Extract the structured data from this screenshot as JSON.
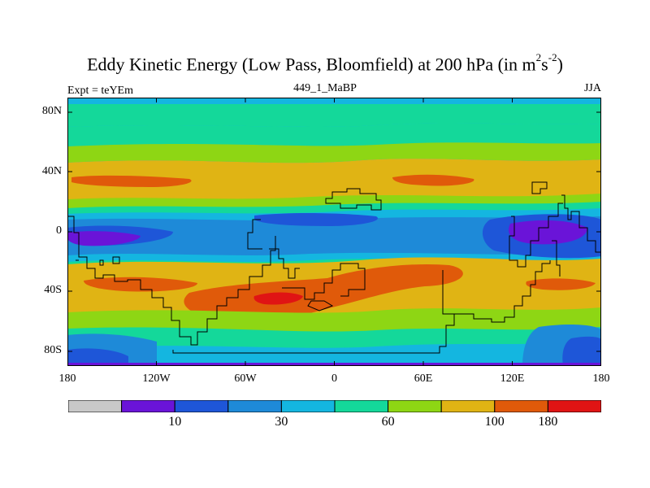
{
  "title": {
    "main": "Eddy Kinetic Energy (Low Pass, Bloomfield) at 200 hPa (in m",
    "sup1": "2",
    "mid": "s",
    "sup2": "-2",
    "close": ")"
  },
  "subtitle": "449_1_MaBP",
  "expt": "Expt = teYEm",
  "season": "JJA",
  "axes": {
    "y_labels": [
      "80N",
      "40N",
      "0",
      "40S",
      "80S"
    ],
    "y_values": [
      80,
      40,
      0,
      -40,
      -80
    ],
    "x_labels": [
      "180",
      "120W",
      "60W",
      "0",
      "60E",
      "120E",
      "180"
    ],
    "x_values": [
      -180,
      -120,
      -60,
      0,
      60,
      120,
      180
    ],
    "lon_range": [
      -180,
      180
    ],
    "lat_range": [
      -90,
      90
    ]
  },
  "colorbar": {
    "colors": [
      "#c8c8c8",
      "#6a14d8",
      "#1e56d8",
      "#1e8ad8",
      "#14b6e0",
      "#14d89a",
      "#8ed614",
      "#e0b414",
      "#e05a0a",
      "#e01414"
    ],
    "labels": [
      "10",
      "30",
      "60",
      "100",
      "180"
    ],
    "label_boundaries": [
      2,
      4,
      6,
      8,
      9
    ]
  }
}
